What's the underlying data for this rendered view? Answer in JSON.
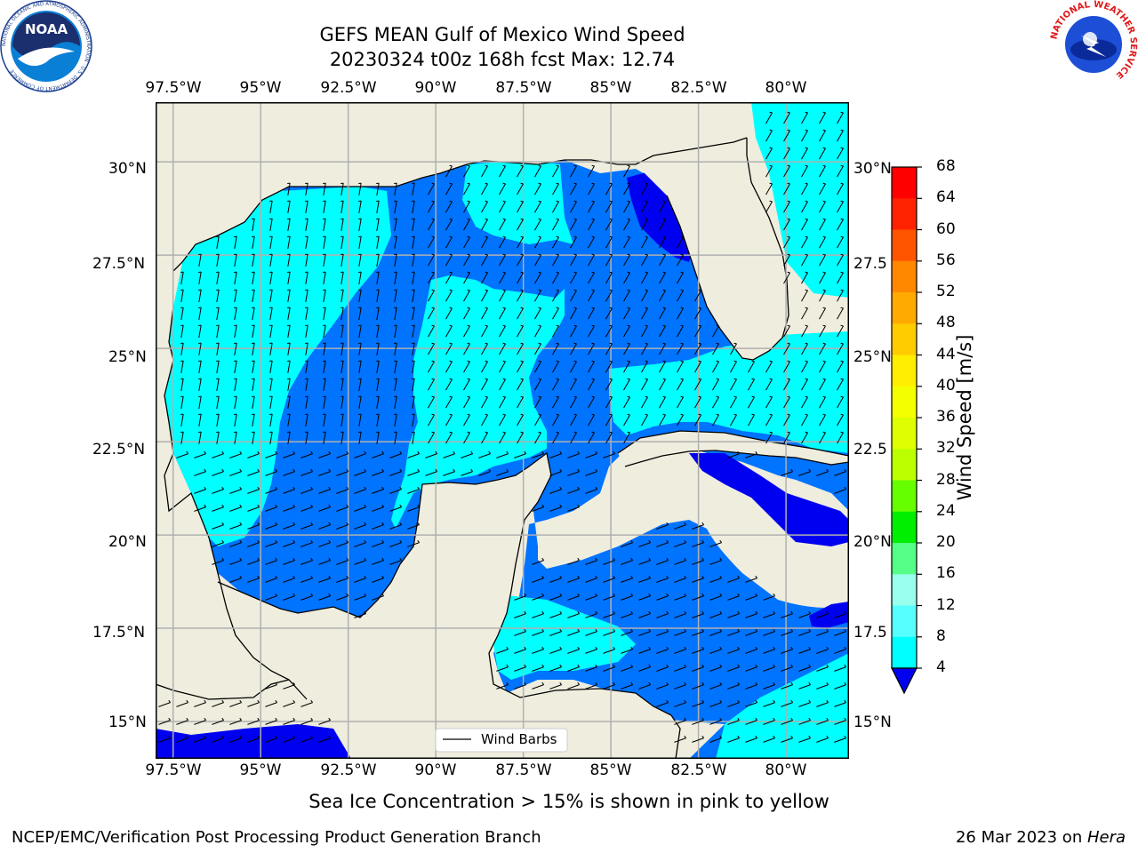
{
  "title": {
    "line1": "GEFS MEAN Gulf of Mexico Wind Speed",
    "line2": "20230324 t00z 168h fcst   Max: 12.74"
  },
  "logos": {
    "noaa_center": "NOAA",
    "noaa_ring": "NATIONAL OCEANIC AND ATMOSPHERIC ADMINISTRATION · U.S. DEPARTMENT OF COMMERCE",
    "nws_ring": "NATIONAL WEATHER SERVICE"
  },
  "map": {
    "lon_labels": [
      "97.5°W",
      "95°W",
      "92.5°W",
      "90°W",
      "87.5°W",
      "85°W",
      "82.5°W",
      "80°W"
    ],
    "lat_labels": [
      "30°N",
      "27.5°N",
      "25°N",
      "22.5°N",
      "20°N",
      "17.5°N",
      "15°N"
    ],
    "lat_labels_right": [
      "30°N",
      "27.5",
      "25°N",
      "22.5",
      "20°N",
      "17.5",
      "15°N"
    ],
    "legend_label": "Wind Barbs",
    "extent": {
      "lon": [
        -98,
        -78.2
      ],
      "lat": [
        14,
        31.6
      ]
    },
    "colors": {
      "land": "#efedde",
      "grid": "#b0b0b0",
      "blue": "#0073ff",
      "darkblue": "#0000f0",
      "cyan": "#00ffff"
    }
  },
  "colorbar": {
    "label": "Wind Speed [m/s]",
    "ticks": [
      "68",
      "64",
      "60",
      "56",
      "52",
      "48",
      "44",
      "40",
      "36",
      "32",
      "28",
      "24",
      "20",
      "16",
      "12",
      "8",
      "4"
    ],
    "colors": [
      "#ff0000",
      "#ff2200",
      "#ff5500",
      "#ff8800",
      "#ffaa00",
      "#ffcc00",
      "#ffee00",
      "#f4ff00",
      "#ddff00",
      "#bbff00",
      "#66ff00",
      "#00ee00",
      "#55ff88",
      "#99ffee",
      "#55ffff",
      "#00ffff",
      "#0073ff"
    ],
    "extend_color": "#0000f0"
  },
  "notes": {
    "sea_ice": "Sea Ice Concentration > 15% is shown in pink to yellow",
    "footer_left": "NCEP/EMC/Verification Post Processing Product Generation Branch",
    "footer_right_prefix": "26 Mar 2023 on ",
    "footer_right_machine": "Hera"
  }
}
